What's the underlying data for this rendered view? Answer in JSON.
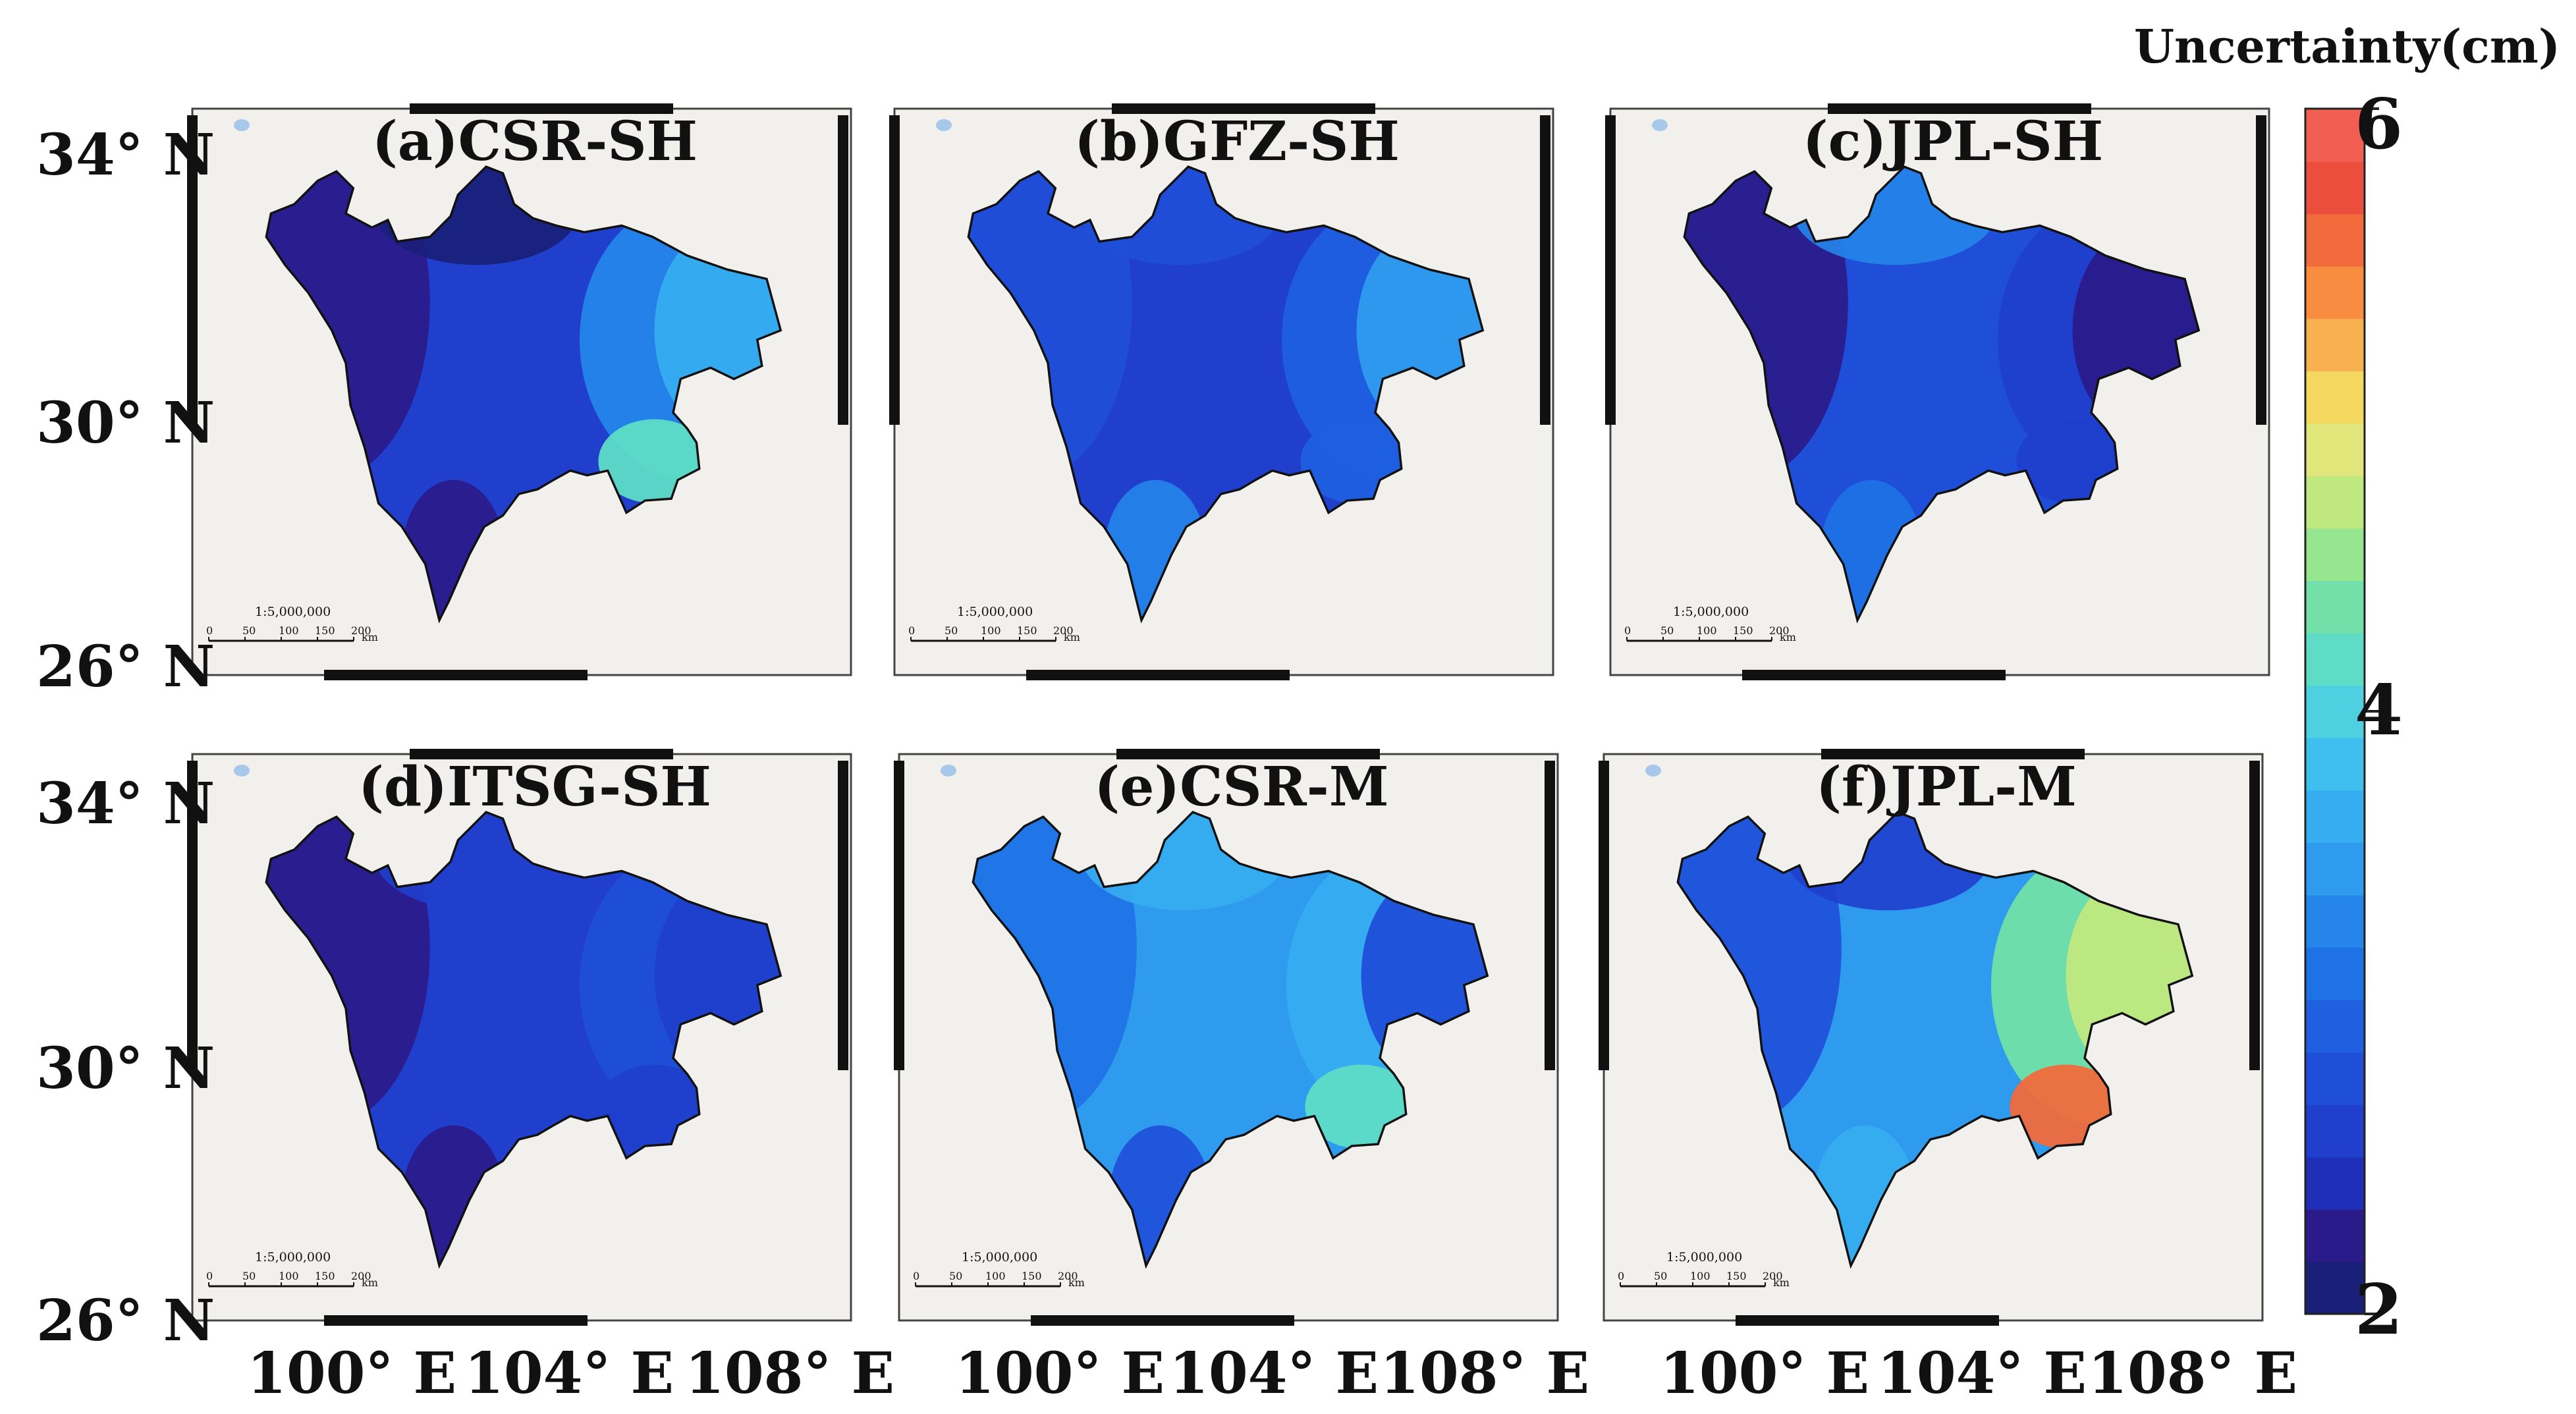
{
  "figure": {
    "colorbar": {
      "title": "Uncertainty(cm)",
      "ticks": [
        "6",
        "4",
        "2"
      ],
      "min": 2,
      "max": 6,
      "colors": [
        "#1a1f78",
        "#2a1a8a",
        "#1f2fb8",
        "#1f3fcc",
        "#1f4fd8",
        "#1f5fe0",
        "#1f72e6",
        "#2585ea",
        "#2f9bee",
        "#36adf0",
        "#3fbff0",
        "#4fd0e0",
        "#5edcc6",
        "#72e0a8",
        "#96e690",
        "#bfe87e",
        "#e0e67a",
        "#f4d860",
        "#f8b050",
        "#f88c40",
        "#f06a3c",
        "#ec4e3e",
        "#f25e52"
      ]
    },
    "lat_labels": [
      "34° N",
      "30° N",
      "26° N"
    ],
    "lon_labels": [
      "100° E",
      "104° E",
      "108° E"
    ],
    "scale_bar": {
      "ratio": "1:5,000,000",
      "ticks": [
        "0",
        "50",
        "100",
        "150",
        "200"
      ],
      "unit": "km"
    },
    "panels": [
      {
        "title": "(a)CSR-SH",
        "colors": {
          "base": "#1f3fcc",
          "west": "#2a1a8a",
          "north": "#1a1f78",
          "east": "#36adf0",
          "east2": "#2585ea",
          "southeast": "#5edcc6",
          "south": "#2a1a8a"
        }
      },
      {
        "title": "(b)GFZ-SH",
        "colors": {
          "base": "#1f3fcc",
          "west": "#1f4fd8",
          "north": "#1f4fd8",
          "east": "#2f9bee",
          "east2": "#1f5fe0",
          "southeast": "#1f5fe0",
          "south": "#2585ea"
        }
      },
      {
        "title": "(c)JPL-SH",
        "colors": {
          "base": "#1f4fd8",
          "west": "#2a1a8a",
          "north": "#2585ea",
          "east": "#2a1a8a",
          "east2": "#1f3fcc",
          "southeast": "#1f3fcc",
          "south": "#1f72e6"
        }
      },
      {
        "title": "(d)ITSG-SH",
        "colors": {
          "base": "#1f3fcc",
          "west": "#2a1a8a",
          "north": "#1f3fcc",
          "east": "#1f3fcc",
          "east2": "#1f4fd8",
          "southeast": "#1f3fcc",
          "south": "#2a1a8a"
        }
      },
      {
        "title": "(e)CSR-M",
        "colors": {
          "base": "#2f9bee",
          "west": "#1f72e6",
          "north": "#36adf0",
          "east": "#1f4fd8",
          "east2": "#36adf0",
          "southeast": "#5edcc6",
          "south": "#1f4fd8"
        }
      },
      {
        "title": "(f)JPL-M",
        "colors": {
          "base": "#2f9bee",
          "west": "#1f4fd8",
          "north": "#1f3fcc",
          "east": "#bfe87e",
          "east2": "#72e0a8",
          "southeast": "#f06a3c",
          "south": "#36adf0"
        }
      }
    ]
  }
}
